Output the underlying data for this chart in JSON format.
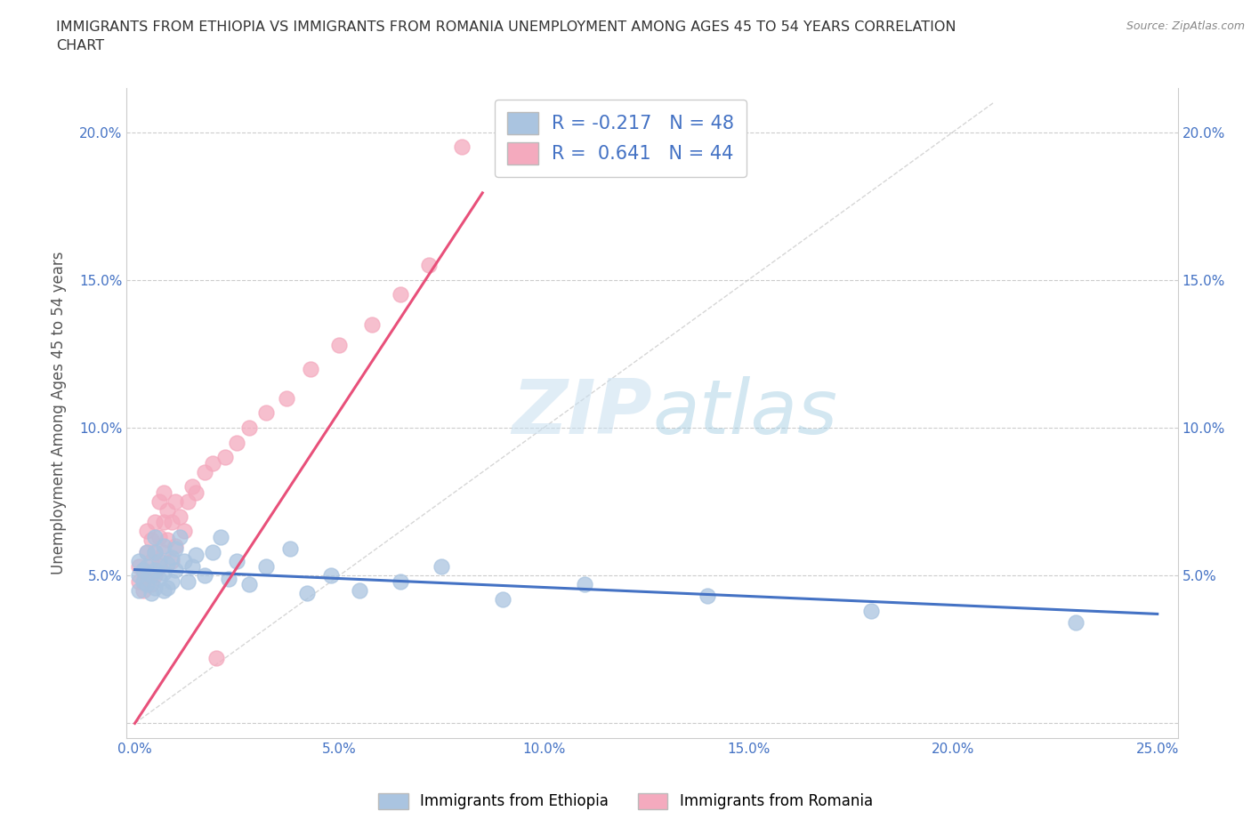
{
  "title": "IMMIGRANTS FROM ETHIOPIA VS IMMIGRANTS FROM ROMANIA UNEMPLOYMENT AMONG AGES 45 TO 54 YEARS CORRELATION\nCHART",
  "source": "Source: ZipAtlas.com",
  "xlabel": "",
  "ylabel": "Unemployment Among Ages 45 to 54 years",
  "xlim": [
    -0.002,
    0.255
  ],
  "ylim": [
    -0.005,
    0.215
  ],
  "xticks": [
    0.0,
    0.05,
    0.1,
    0.15,
    0.2,
    0.25
  ],
  "yticks": [
    0.0,
    0.05,
    0.1,
    0.15,
    0.2
  ],
  "xticklabels": [
    "0.0%",
    "5.0%",
    "10.0%",
    "15.0%",
    "20.0%",
    "25.0%"
  ],
  "yticklabels": [
    "",
    "5.0%",
    "10.0%",
    "15.0%",
    "20.0%"
  ],
  "right_yticklabels": [
    "",
    "5.0%",
    "10.0%",
    "15.0%",
    "20.0%"
  ],
  "watermark_zip": "ZIP",
  "watermark_atlas": "atlas",
  "ethiopia_color": "#aac4e0",
  "ethiopia_edge": "#7aadd4",
  "romania_color": "#f4aabe",
  "romania_edge": "#e87a9a",
  "line_ethiopia": "#4472c4",
  "line_romania": "#e8507a",
  "ethiopia_R": -0.217,
  "ethiopia_N": 48,
  "romania_R": 0.641,
  "romania_N": 44,
  "legend_label_ethiopia": "Immigrants from Ethiopia",
  "legend_label_romania": "Immigrants from Romania",
  "ethiopia_x": [
    0.001,
    0.001,
    0.001,
    0.002,
    0.002,
    0.003,
    0.003,
    0.003,
    0.004,
    0.004,
    0.005,
    0.005,
    0.005,
    0.005,
    0.006,
    0.006,
    0.007,
    0.007,
    0.007,
    0.008,
    0.008,
    0.009,
    0.009,
    0.01,
    0.01,
    0.011,
    0.012,
    0.013,
    0.014,
    0.015,
    0.017,
    0.019,
    0.021,
    0.023,
    0.025,
    0.028,
    0.032,
    0.038,
    0.042,
    0.048,
    0.055,
    0.065,
    0.075,
    0.09,
    0.11,
    0.14,
    0.18,
    0.23
  ],
  "ethiopia_y": [
    0.05,
    0.045,
    0.055,
    0.048,
    0.052,
    0.047,
    0.053,
    0.058,
    0.044,
    0.05,
    0.046,
    0.052,
    0.058,
    0.063,
    0.049,
    0.055,
    0.045,
    0.051,
    0.06,
    0.046,
    0.054,
    0.048,
    0.056,
    0.052,
    0.059,
    0.063,
    0.055,
    0.048,
    0.053,
    0.057,
    0.05,
    0.058,
    0.063,
    0.049,
    0.055,
    0.047,
    0.053,
    0.059,
    0.044,
    0.05,
    0.045,
    0.048,
    0.053,
    0.042,
    0.047,
    0.043,
    0.038,
    0.034
  ],
  "romania_x": [
    0.001,
    0.001,
    0.002,
    0.002,
    0.003,
    0.003,
    0.003,
    0.004,
    0.004,
    0.004,
    0.005,
    0.005,
    0.005,
    0.006,
    0.006,
    0.006,
    0.007,
    0.007,
    0.007,
    0.008,
    0.008,
    0.009,
    0.009,
    0.01,
    0.01,
    0.011,
    0.012,
    0.013,
    0.014,
    0.015,
    0.017,
    0.019,
    0.022,
    0.025,
    0.028,
    0.032,
    0.037,
    0.043,
    0.05,
    0.058,
    0.065,
    0.072,
    0.08,
    0.02
  ],
  "romania_y": [
    0.048,
    0.053,
    0.045,
    0.052,
    0.05,
    0.058,
    0.065,
    0.047,
    0.055,
    0.062,
    0.05,
    0.058,
    0.068,
    0.053,
    0.063,
    0.075,
    0.058,
    0.068,
    0.078,
    0.062,
    0.072,
    0.055,
    0.068,
    0.06,
    0.075,
    0.07,
    0.065,
    0.075,
    0.08,
    0.078,
    0.085,
    0.088,
    0.09,
    0.095,
    0.1,
    0.105,
    0.11,
    0.12,
    0.128,
    0.135,
    0.145,
    0.155,
    0.195,
    0.022
  ]
}
